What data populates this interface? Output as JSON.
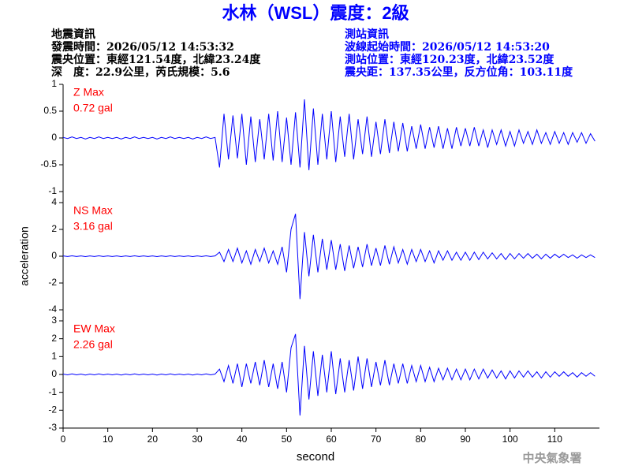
{
  "header": {
    "title": "水林（WSL）震度：2級",
    "left": [
      "地震資訊",
      "發震時間：2026/05/12 14:53:32",
      "震央位置：東經121.54度，北緯23.24度",
      "深　度：22.9公里，芮氏規模：5.6"
    ],
    "right": [
      "測站資訊",
      "波線起始時間：2026/05/12 14:53:20",
      "測站位置：東經120.23度，北緯23.52度",
      "震央距：137.35公里，反方位角：103.11度"
    ],
    "watermark": "中央氣象署"
  },
  "chart_data": [
    {
      "type": "line",
      "annotations": [
        "Z Max",
        "0.72 gal"
      ],
      "color": "#0000ff",
      "xlim": [
        0,
        120
      ],
      "ylim": [
        -1,
        1
      ],
      "yticks": [
        1,
        0.5,
        0,
        -0.5,
        -1
      ],
      "x": [
        0,
        1,
        2,
        3,
        4,
        5,
        6,
        7,
        8,
        9,
        10,
        11,
        12,
        13,
        14,
        15,
        16,
        17,
        18,
        19,
        20,
        21,
        22,
        23,
        24,
        25,
        26,
        27,
        28,
        29,
        30,
        31,
        32,
        33,
        34,
        35,
        36,
        37,
        38,
        39,
        40,
        41,
        42,
        43,
        44,
        45,
        46,
        47,
        48,
        49,
        50,
        51,
        52,
        53,
        54,
        55,
        56,
        57,
        58,
        59,
        60,
        61,
        62,
        63,
        64,
        65,
        66,
        67,
        68,
        69,
        70,
        71,
        72,
        73,
        74,
        75,
        76,
        77,
        78,
        79,
        80,
        81,
        82,
        83,
        84,
        85,
        86,
        87,
        88,
        89,
        90,
        91,
        92,
        93,
        94,
        95,
        96,
        97,
        98,
        99,
        100,
        101,
        102,
        103,
        104,
        105,
        106,
        107,
        108,
        109,
        110,
        111,
        112,
        113,
        114,
        115,
        116,
        117,
        118,
        119
      ],
      "values": [
        0.01,
        -0.01,
        0.02,
        -0.01,
        0.01,
        -0.02,
        0.01,
        -0.01,
        0.02,
        -0.01,
        0.01,
        -0.01,
        0.01,
        -0.02,
        0.01,
        -0.01,
        0.02,
        -0.01,
        0.01,
        -0.01,
        0.01,
        -0.02,
        0.01,
        -0.01,
        0.02,
        -0.01,
        0.01,
        -0.01,
        0.01,
        -0.02,
        0.01,
        -0.01,
        0.02,
        -0.01,
        0.01,
        -0.55,
        0.45,
        -0.4,
        0.42,
        -0.38,
        0.45,
        -0.5,
        0.4,
        -0.45,
        0.35,
        -0.4,
        0.45,
        -0.42,
        0.5,
        -0.45,
        0.38,
        -0.5,
        0.48,
        -0.55,
        0.72,
        -0.6,
        0.55,
        -0.5,
        0.45,
        -0.4,
        0.5,
        -0.45,
        0.4,
        -0.35,
        0.45,
        -0.4,
        0.35,
        -0.3,
        0.4,
        -0.35,
        0.3,
        -0.3,
        0.35,
        -0.28,
        0.3,
        -0.25,
        0.28,
        -0.25,
        0.22,
        -0.2,
        0.25,
        -0.2,
        0.2,
        -0.18,
        0.22,
        -0.2,
        0.18,
        -0.2,
        0.2,
        -0.15,
        0.18,
        -0.15,
        0.2,
        -0.15,
        0.15,
        -0.18,
        0.15,
        -0.12,
        0.15,
        -0.15,
        0.12,
        -0.15,
        0.15,
        -0.1,
        0.12,
        -0.12,
        0.15,
        -0.1,
        0.1,
        -0.12,
        0.12,
        -0.1,
        0.1,
        -0.12,
        0.1,
        -0.08,
        0.1,
        -0.1,
        0.08,
        -0.06
      ]
    },
    {
      "type": "line",
      "annotations": [
        "NS Max",
        "3.16 gal"
      ],
      "ylabel": "acceleration",
      "color": "#0000ff",
      "xlim": [
        0,
        120
      ],
      "ylim": [
        -4,
        4
      ],
      "yticks": [
        4,
        2,
        0,
        -2,
        -4
      ],
      "x": [
        0,
        1,
        2,
        3,
        4,
        5,
        6,
        7,
        8,
        9,
        10,
        11,
        12,
        13,
        14,
        15,
        16,
        17,
        18,
        19,
        20,
        21,
        22,
        23,
        24,
        25,
        26,
        27,
        28,
        29,
        30,
        31,
        32,
        33,
        34,
        35,
        36,
        37,
        38,
        39,
        40,
        41,
        42,
        43,
        44,
        45,
        46,
        47,
        48,
        49,
        50,
        51,
        52,
        53,
        54,
        55,
        56,
        57,
        58,
        59,
        60,
        61,
        62,
        63,
        64,
        65,
        66,
        67,
        68,
        69,
        70,
        71,
        72,
        73,
        74,
        75,
        76,
        77,
        78,
        79,
        80,
        81,
        82,
        83,
        84,
        85,
        86,
        87,
        88,
        89,
        90,
        91,
        92,
        93,
        94,
        95,
        96,
        97,
        98,
        99,
        100,
        101,
        102,
        103,
        104,
        105,
        106,
        107,
        108,
        109,
        110,
        111,
        112,
        113,
        114,
        115,
        116,
        117,
        118,
        119
      ],
      "values": [
        0.02,
        -0.02,
        0.03,
        -0.02,
        0.02,
        -0.03,
        0.02,
        -0.02,
        0.03,
        -0.02,
        0.02,
        -0.02,
        0.02,
        -0.03,
        0.02,
        -0.02,
        0.03,
        -0.02,
        0.02,
        -0.02,
        0.02,
        -0.03,
        0.02,
        -0.02,
        0.03,
        -0.02,
        0.02,
        -0.02,
        0.02,
        -0.03,
        0.02,
        -0.02,
        0.03,
        -0.02,
        0.02,
        0.3,
        -0.4,
        0.5,
        -0.4,
        0.6,
        -0.5,
        0.4,
        -0.6,
        0.5,
        -0.4,
        0.6,
        -0.5,
        0.4,
        -0.6,
        0.7,
        -1.2,
        2.0,
        3.16,
        -3.2,
        1.8,
        -1.5,
        1.6,
        -1.2,
        1.3,
        -1.0,
        1.2,
        -1.0,
        0.9,
        -1.1,
        0.8,
        -0.9,
        0.7,
        -0.8,
        0.9,
        -0.7,
        0.6,
        -0.7,
        0.8,
        -0.6,
        0.7,
        -0.5,
        0.5,
        -0.6,
        0.5,
        -0.4,
        0.5,
        -0.4,
        0.4,
        -0.5,
        0.4,
        -0.3,
        0.4,
        -0.3,
        0.3,
        -0.3,
        0.3,
        -0.3,
        0.3,
        -0.25,
        0.3,
        -0.2,
        0.25,
        -0.2,
        0.2,
        -0.25,
        0.2,
        -0.2,
        0.2,
        -0.15,
        0.2,
        -0.15,
        0.15,
        -0.2,
        0.15,
        -0.15,
        0.15,
        -0.1,
        0.15,
        -0.1,
        0.1,
        -0.15,
        0.1,
        -0.1,
        0.1,
        -0.1
      ]
    },
    {
      "type": "line",
      "annotations": [
        "EW Max",
        "2.26 gal"
      ],
      "xlabel": "second",
      "color": "#0000ff",
      "xlim": [
        0,
        120
      ],
      "xticks": [
        0,
        10,
        20,
        30,
        40,
        50,
        60,
        70,
        80,
        90,
        100,
        110
      ],
      "ylim": [
        -3,
        3
      ],
      "yticks": [
        3,
        2,
        1,
        0,
        -1,
        -2,
        -3
      ],
      "x": [
        0,
        1,
        2,
        3,
        4,
        5,
        6,
        7,
        8,
        9,
        10,
        11,
        12,
        13,
        14,
        15,
        16,
        17,
        18,
        19,
        20,
        21,
        22,
        23,
        24,
        25,
        26,
        27,
        28,
        29,
        30,
        31,
        32,
        33,
        34,
        35,
        36,
        37,
        38,
        39,
        40,
        41,
        42,
        43,
        44,
        45,
        46,
        47,
        48,
        49,
        50,
        51,
        52,
        53,
        54,
        55,
        56,
        57,
        58,
        59,
        60,
        61,
        62,
        63,
        64,
        65,
        66,
        67,
        68,
        69,
        70,
        71,
        72,
        73,
        74,
        75,
        76,
        77,
        78,
        79,
        80,
        81,
        82,
        83,
        84,
        85,
        86,
        87,
        88,
        89,
        90,
        91,
        92,
        93,
        94,
        95,
        96,
        97,
        98,
        99,
        100,
        101,
        102,
        103,
        104,
        105,
        106,
        107,
        108,
        109,
        110,
        111,
        112,
        113,
        114,
        115,
        116,
        117,
        118,
        119
      ],
      "values": [
        0.02,
        -0.02,
        0.03,
        -0.02,
        0.02,
        -0.03,
        0.02,
        -0.02,
        0.03,
        -0.02,
        0.02,
        -0.02,
        0.02,
        -0.03,
        0.02,
        -0.02,
        0.03,
        -0.02,
        0.02,
        -0.02,
        0.02,
        -0.03,
        0.02,
        -0.02,
        0.03,
        -0.02,
        0.02,
        -0.02,
        0.02,
        -0.03,
        0.02,
        -0.02,
        0.03,
        -0.02,
        0.02,
        0.3,
        -0.4,
        0.5,
        -0.5,
        0.6,
        -0.7,
        0.6,
        -0.5,
        0.7,
        -0.6,
        0.8,
        -0.7,
        0.6,
        -0.8,
        0.7,
        -1.0,
        1.5,
        2.26,
        -2.3,
        1.6,
        -1.4,
        1.3,
        -1.2,
        1.1,
        -1.0,
        1.3,
        -1.1,
        0.9,
        -1.0,
        0.8,
        -0.9,
        1.0,
        -0.8,
        0.9,
        -0.7,
        0.7,
        -0.6,
        0.8,
        -0.6,
        0.6,
        -0.5,
        0.6,
        -0.5,
        0.5,
        -0.4,
        0.5,
        -0.4,
        0.4,
        -0.4,
        0.35,
        -0.3,
        0.35,
        -0.3,
        0.3,
        -0.3,
        0.3,
        -0.3,
        0.3,
        -0.25,
        0.3,
        -0.2,
        0.25,
        -0.2,
        0.2,
        -0.25,
        0.2,
        -0.2,
        0.2,
        -0.15,
        0.2,
        -0.15,
        0.15,
        -0.2,
        0.15,
        -0.15,
        0.15,
        -0.1,
        0.15,
        -0.1,
        0.1,
        -0.15,
        0.1,
        -0.1,
        0.1,
        -0.1
      ]
    }
  ]
}
